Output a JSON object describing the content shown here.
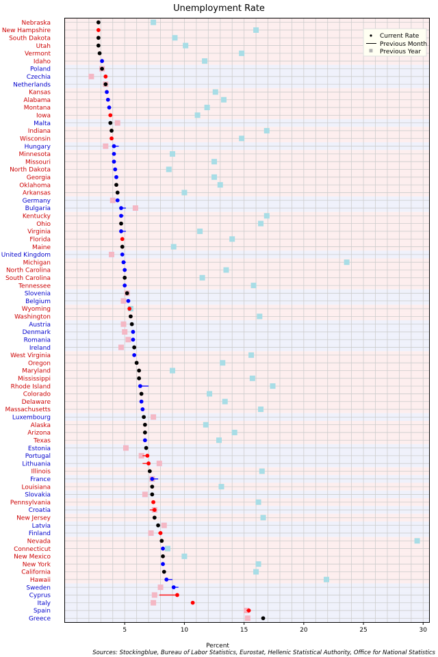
{
  "chart_data": {
    "type": "scatter",
    "title": "Unemployment Rate",
    "xlabel": "Percent",
    "source": "Sources: Stockingblue, Bureau of Labor Statistics, Eurostat, Hellenic Statistical Authority, Office for National Statistics",
    "xlim": [
      0,
      30.5
    ],
    "xticks": [
      5,
      10,
      15,
      20,
      25,
      30
    ],
    "grid": true,
    "legend_position": "top-right",
    "legend": [
      "Current Rate",
      "Previous Month",
      "Previous Year"
    ],
    "colors": {
      "us_background": "#fdeeee",
      "eu_background": "#eff1fb",
      "us_label": "#cc0000",
      "eu_label": "#0000cc",
      "worse": "#ff0000",
      "better": "#0000ff",
      "same": "#000000",
      "prev_year_us": "#a8dde6",
      "prev_year_eu": "#f4b7c4",
      "grid": "#cccccc"
    },
    "rows": [
      {
        "name": "Nebraska",
        "region": "us",
        "current": 2.8,
        "prev_month": 2.8,
        "prev_year": 7.4
      },
      {
        "name": "New Hampshire",
        "region": "us",
        "current": 2.8,
        "prev_month": 2.7,
        "prev_year": 16.0
      },
      {
        "name": "South Dakota",
        "region": "us",
        "current": 2.8,
        "prev_month": 2.8,
        "prev_year": 9.2
      },
      {
        "name": "Utah",
        "region": "us",
        "current": 2.8,
        "prev_month": 2.8,
        "prev_year": 10.1
      },
      {
        "name": "Vermont",
        "region": "us",
        "current": 2.9,
        "prev_month": 2.9,
        "prev_year": 14.8
      },
      {
        "name": "Idaho",
        "region": "us",
        "current": 3.1,
        "prev_month": 3.2,
        "prev_year": 11.7
      },
      {
        "name": "Poland",
        "region": "eu",
        "current": 3.1,
        "prev_month": 3.1,
        "prev_year": 3.1
      },
      {
        "name": "Czechia",
        "region": "eu",
        "current": 3.4,
        "prev_month": 3.3,
        "prev_year": 2.2
      },
      {
        "name": "Netherlands",
        "region": "eu",
        "current": 3.4,
        "prev_month": 3.4,
        "prev_year": 3.4
      },
      {
        "name": "Kansas",
        "region": "us",
        "current": 3.5,
        "prev_month": 3.6,
        "prev_year": 12.6
      },
      {
        "name": "Alabama",
        "region": "us",
        "current": 3.6,
        "prev_month": 3.7,
        "prev_year": 13.3
      },
      {
        "name": "Montana",
        "region": "us",
        "current": 3.7,
        "prev_month": 3.8,
        "prev_year": 11.9
      },
      {
        "name": "Iowa",
        "region": "us",
        "current": 3.8,
        "prev_month": 3.7,
        "prev_year": 11.1
      },
      {
        "name": "Malta",
        "region": "eu",
        "current": 3.8,
        "prev_month": 3.8,
        "prev_year": 4.4
      },
      {
        "name": "Indiana",
        "region": "us",
        "current": 3.9,
        "prev_month": 3.9,
        "prev_year": 16.9
      },
      {
        "name": "Wisconsin",
        "region": "us",
        "current": 3.9,
        "prev_month": 3.8,
        "prev_year": 14.8
      },
      {
        "name": "Hungary",
        "region": "eu",
        "current": 4.1,
        "prev_month": 4.5,
        "prev_year": 3.4
      },
      {
        "name": "Minnesota",
        "region": "us",
        "current": 4.1,
        "prev_month": 4.2,
        "prev_year": 9.0
      },
      {
        "name": "Missouri",
        "region": "us",
        "current": 4.1,
        "prev_month": 4.2,
        "prev_year": 12.5
      },
      {
        "name": "North Dakota",
        "region": "us",
        "current": 4.2,
        "prev_month": 4.3,
        "prev_year": 8.7
      },
      {
        "name": "Georgia",
        "region": "us",
        "current": 4.3,
        "prev_month": 4.4,
        "prev_year": 12.5
      },
      {
        "name": "Oklahoma",
        "region": "us",
        "current": 4.3,
        "prev_month": 4.3,
        "prev_year": 13.0
      },
      {
        "name": "Arkansas",
        "region": "us",
        "current": 4.4,
        "prev_month": 4.4,
        "prev_year": 10.0
      },
      {
        "name": "Germany",
        "region": "eu",
        "current": 4.4,
        "prev_month": 4.5,
        "prev_year": 4.0
      },
      {
        "name": "Bulgaria",
        "region": "eu",
        "current": 4.7,
        "prev_month": 5.1,
        "prev_year": 5.9
      },
      {
        "name": "Kentucky",
        "region": "us",
        "current": 4.7,
        "prev_month": 4.9,
        "prev_year": 16.9
      },
      {
        "name": "Ohio",
        "region": "us",
        "current": 4.7,
        "prev_month": 4.7,
        "prev_year": 16.4
      },
      {
        "name": "Virginia",
        "region": "us",
        "current": 4.7,
        "prev_month": 5.1,
        "prev_year": 11.3
      },
      {
        "name": "Florida",
        "region": "us",
        "current": 4.8,
        "prev_month": 4.7,
        "prev_year": 14.0
      },
      {
        "name": "Maine",
        "region": "us",
        "current": 4.8,
        "prev_month": 4.8,
        "prev_year": 9.1
      },
      {
        "name": "United Kingdom",
        "region": "eu",
        "current": 4.8,
        "prev_month": 4.9,
        "prev_year": 3.9
      },
      {
        "name": "Michigan",
        "region": "us",
        "current": 4.9,
        "prev_month": 5.1,
        "prev_year": 23.6
      },
      {
        "name": "North Carolina",
        "region": "us",
        "current": 5.0,
        "prev_month": 5.1,
        "prev_year": 13.5
      },
      {
        "name": "South Carolina",
        "region": "us",
        "current": 5.0,
        "prev_month": 5.0,
        "prev_year": 11.5
      },
      {
        "name": "Tennessee",
        "region": "us",
        "current": 5.0,
        "prev_month": 5.1,
        "prev_year": 15.8
      },
      {
        "name": "Slovenia",
        "region": "eu",
        "current": 5.2,
        "prev_month": 5.2,
        "prev_year": 5.2
      },
      {
        "name": "Belgium",
        "region": "eu",
        "current": 5.3,
        "prev_month": 5.4,
        "prev_year": 4.9
      },
      {
        "name": "Wyoming",
        "region": "us",
        "current": 5.4,
        "prev_month": 5.3,
        "prev_year": 5.5
      },
      {
        "name": "Washington",
        "region": "us",
        "current": 5.5,
        "prev_month": 5.5,
        "prev_year": 16.3
      },
      {
        "name": "Austria",
        "region": "eu",
        "current": 5.6,
        "prev_month": 5.6,
        "prev_year": 4.9
      },
      {
        "name": "Denmark",
        "region": "eu",
        "current": 5.7,
        "prev_month": 5.8,
        "prev_year": 5.0
      },
      {
        "name": "Romania",
        "region": "eu",
        "current": 5.7,
        "prev_month": 5.8,
        "prev_year": 5.3
      },
      {
        "name": "Ireland",
        "region": "eu",
        "current": 5.8,
        "prev_month": 5.8,
        "prev_year": 4.7
      },
      {
        "name": "West Virginia",
        "region": "us",
        "current": 5.8,
        "prev_month": 5.9,
        "prev_year": 15.6
      },
      {
        "name": "Oregon",
        "region": "us",
        "current": 6.0,
        "prev_month": 6.0,
        "prev_year": 13.2
      },
      {
        "name": "Maryland",
        "region": "us",
        "current": 6.2,
        "prev_month": 6.2,
        "prev_year": 9.0
      },
      {
        "name": "Mississippi",
        "region": "us",
        "current": 6.2,
        "prev_month": 6.2,
        "prev_year": 15.7
      },
      {
        "name": "Rhode Island",
        "region": "us",
        "current": 6.3,
        "prev_month": 7.0,
        "prev_year": 17.4
      },
      {
        "name": "Colorado",
        "region": "us",
        "current": 6.4,
        "prev_month": 6.4,
        "prev_year": 12.1
      },
      {
        "name": "Delaware",
        "region": "us",
        "current": 6.4,
        "prev_month": 6.5,
        "prev_year": 13.4
      },
      {
        "name": "Massachusetts",
        "region": "us",
        "current": 6.5,
        "prev_month": 6.6,
        "prev_year": 16.4
      },
      {
        "name": "Luxembourg",
        "region": "eu",
        "current": 6.6,
        "prev_month": 6.6,
        "prev_year": 7.4
      },
      {
        "name": "Alaska",
        "region": "us",
        "current": 6.7,
        "prev_month": 6.7,
        "prev_year": 11.8
      },
      {
        "name": "Arizona",
        "region": "us",
        "current": 6.7,
        "prev_month": 6.7,
        "prev_year": 14.2
      },
      {
        "name": "Texas",
        "region": "us",
        "current": 6.7,
        "prev_month": 6.8,
        "prev_year": 12.9
      },
      {
        "name": "Estonia",
        "region": "eu",
        "current": 6.8,
        "prev_month": 6.8,
        "prev_year": 5.1
      },
      {
        "name": "Portugal",
        "region": "eu",
        "current": 6.9,
        "prev_month": 6.5,
        "prev_year": 6.4
      },
      {
        "name": "Lithuania",
        "region": "eu",
        "current": 7.0,
        "prev_month": 6.5,
        "prev_year": 7.9
      },
      {
        "name": "Illinois",
        "region": "us",
        "current": 7.1,
        "prev_month": 7.1,
        "prev_year": 16.5
      },
      {
        "name": "France",
        "region": "eu",
        "current": 7.3,
        "prev_month": 7.8,
        "prev_year": 7.3
      },
      {
        "name": "Louisiana",
        "region": "us",
        "current": 7.3,
        "prev_month": 7.3,
        "prev_year": 13.1
      },
      {
        "name": "Slovakia",
        "region": "eu",
        "current": 7.3,
        "prev_month": 7.3,
        "prev_year": 6.7
      },
      {
        "name": "Pennsylvania",
        "region": "us",
        "current": 7.4,
        "prev_month": 7.3,
        "prev_year": 16.2
      },
      {
        "name": "Croatia",
        "region": "eu",
        "current": 7.5,
        "prev_month": 7.1,
        "prev_year": 7.5
      },
      {
        "name": "New Jersey",
        "region": "us",
        "current": 7.5,
        "prev_month": 7.5,
        "prev_year": 16.6
      },
      {
        "name": "Latvia",
        "region": "eu",
        "current": 7.8,
        "prev_month": 7.8,
        "prev_year": 8.3
      },
      {
        "name": "Finland",
        "region": "eu",
        "current": 8.0,
        "prev_month": 7.8,
        "prev_year": 7.2
      },
      {
        "name": "Nevada",
        "region": "us",
        "current": 8.1,
        "prev_month": 8.1,
        "prev_year": 29.5
      },
      {
        "name": "Connecticut",
        "region": "us",
        "current": 8.2,
        "prev_month": 8.3,
        "prev_year": 8.6
      },
      {
        "name": "New Mexico",
        "region": "us",
        "current": 8.2,
        "prev_month": 8.2,
        "prev_year": 10.0
      },
      {
        "name": "New York",
        "region": "us",
        "current": 8.2,
        "prev_month": 8.3,
        "prev_year": 16.2
      },
      {
        "name": "California",
        "region": "us",
        "current": 8.3,
        "prev_month": 8.3,
        "prev_year": 16.0
      },
      {
        "name": "Hawaii",
        "region": "us",
        "current": 8.5,
        "prev_month": 9.0,
        "prev_year": 21.9
      },
      {
        "name": "Sweden",
        "region": "eu",
        "current": 9.1,
        "prev_month": 9.5,
        "prev_year": 8.0
      },
      {
        "name": "Cyprus",
        "region": "eu",
        "current": 9.4,
        "prev_month": 7.9,
        "prev_year": 7.5
      },
      {
        "name": "Italy",
        "region": "eu",
        "current": 10.7,
        "prev_month": 10.6,
        "prev_year": 7.4
      },
      {
        "name": "Spain",
        "region": "eu",
        "current": 15.4,
        "prev_month": 15.2,
        "prev_year": 15.2
      },
      {
        "name": "Greece",
        "region": "eu",
        "current": 16.6,
        "prev_month": 16.6,
        "prev_year": 15.3
      }
    ]
  }
}
